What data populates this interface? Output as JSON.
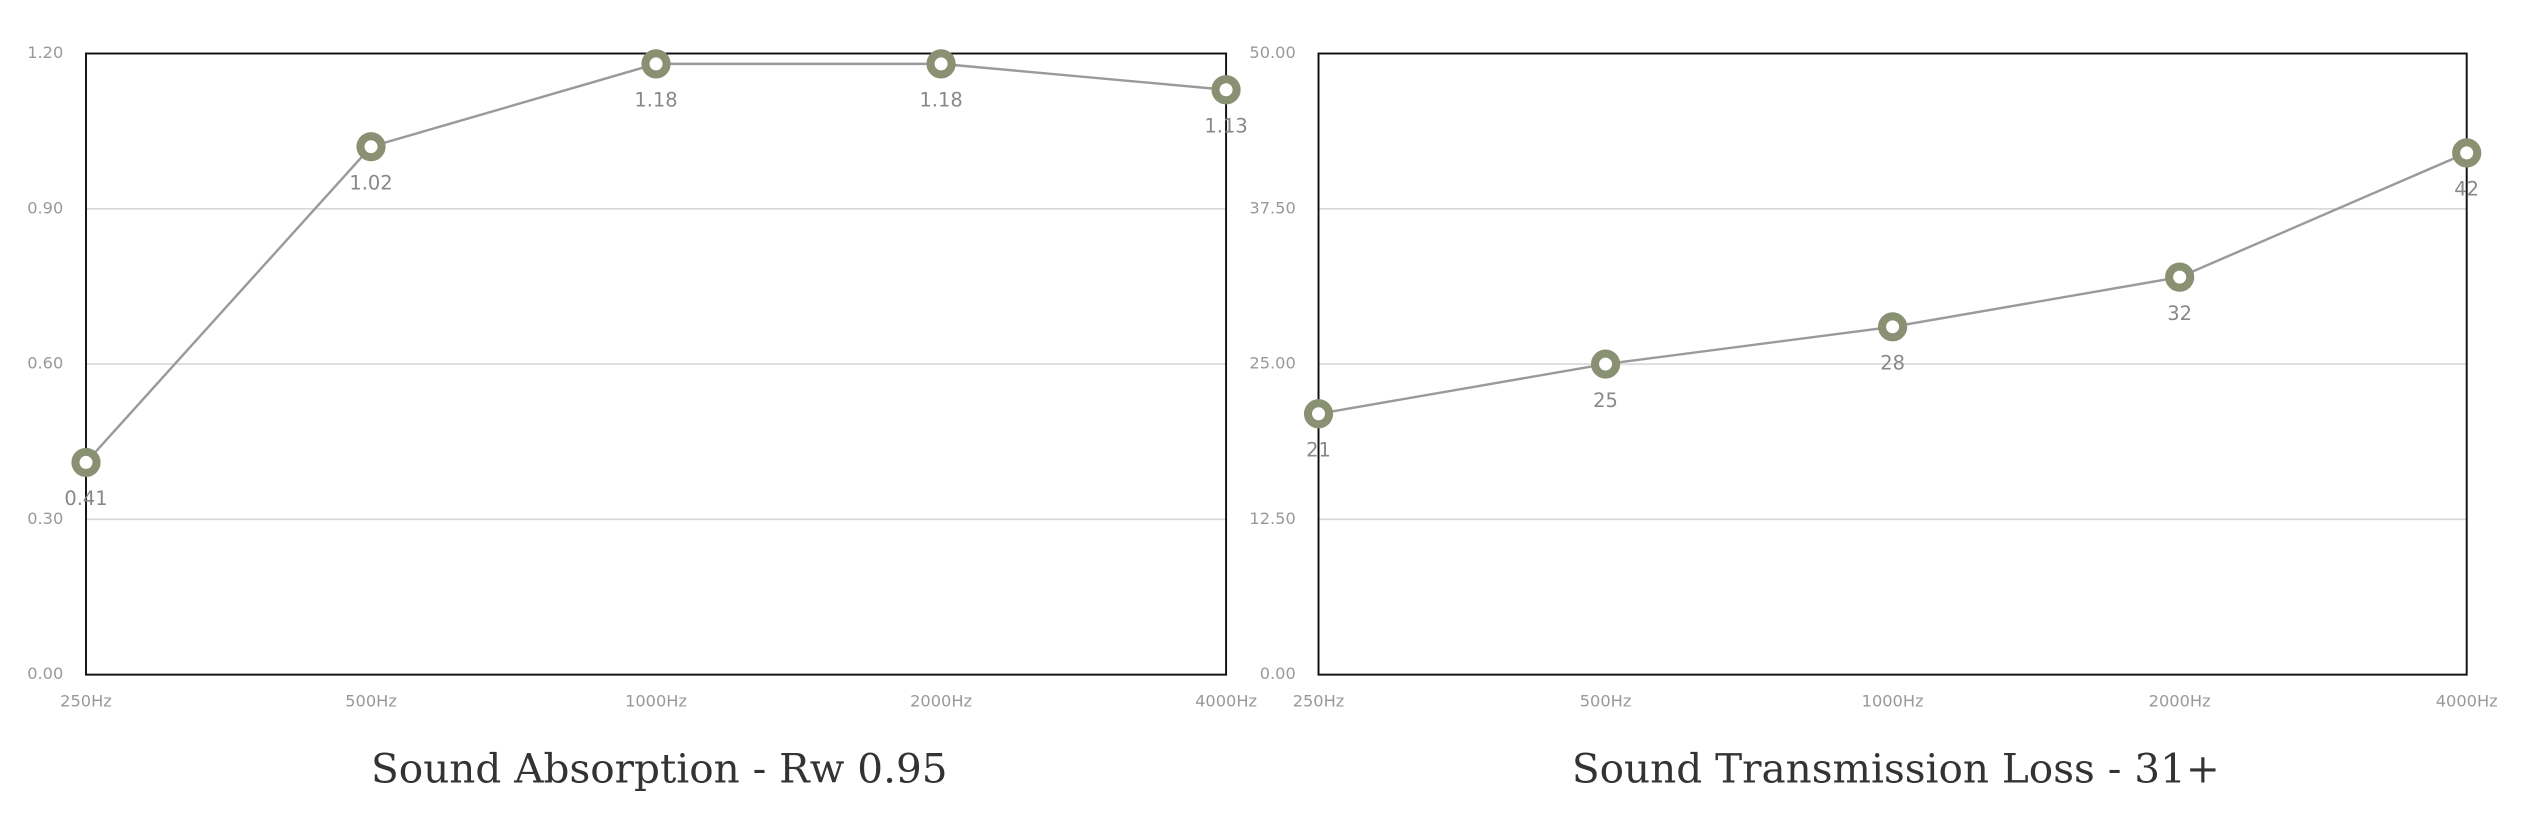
{
  "chart_data": [
    {
      "type": "line",
      "title": "Sound Absorption - Rw 0.95",
      "categories": [
        "250Hz",
        "500Hz",
        "1000Hz",
        "2000Hz",
        "4000Hz"
      ],
      "series": [
        {
          "name": "Sound Absorption",
          "color": "#8a9173",
          "values": [
            0.41,
            1.02,
            1.18,
            1.18,
            1.13
          ]
        }
      ],
      "ylim": [
        0,
        1.2
      ],
      "yticks": [
        {
          "value": 0,
          "label": "0.00"
        },
        {
          "value": 0.3,
          "label": "0.30"
        },
        {
          "value": 0.6,
          "label": "0.60"
        },
        {
          "value": 0.9,
          "label": "0.90"
        },
        {
          "value": 1.2,
          "label": "1.20"
        }
      ],
      "grid": true
    },
    {
      "type": "line",
      "title": "Sound Transmission Loss - 31+",
      "categories": [
        "250Hz",
        "500Hz",
        "1000Hz",
        "2000Hz",
        "4000Hz"
      ],
      "series": [
        {
          "name": "Sound Transmission Loss",
          "color": "#8a9173",
          "values": [
            21,
            25,
            28,
            32,
            42
          ]
        }
      ],
      "ylim": [
        0,
        50
      ],
      "yticks": [
        {
          "value": 0,
          "label": "0.00"
        },
        {
          "value": 12.5,
          "label": "12.50"
        },
        {
          "value": 25,
          "label": "25.00"
        },
        {
          "value": 37.5,
          "label": "37.50"
        },
        {
          "value": 50,
          "label": "50.00"
        }
      ],
      "grid": true
    }
  ]
}
